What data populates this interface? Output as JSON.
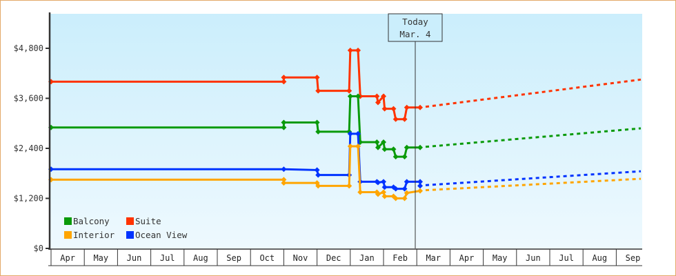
{
  "chart_data": {
    "type": "line",
    "title": "",
    "xlabel": "",
    "ylabel": "",
    "ylim": [
      0,
      5700
    ],
    "y_ticks": [
      "$0",
      "$1,200",
      "$2,400",
      "$3,600",
      "$4,800"
    ],
    "y_tick_values": [
      0,
      1200,
      2400,
      3600,
      4800
    ],
    "x_months": [
      "Apr",
      "May",
      "Jun",
      "Jul",
      "Aug",
      "Sep",
      "Oct",
      "Nov",
      "Dec",
      "Jan",
      "Feb",
      "Mar",
      "Apr",
      "May",
      "Jun",
      "Jul",
      "Aug",
      "Sep"
    ],
    "today_marker": {
      "line1": "Today",
      "line2": "Mar. 4"
    },
    "legend": [
      {
        "name": "Balcony",
        "color": "#0a9a0a"
      },
      {
        "name": "Suite",
        "color": "#ff3300"
      },
      {
        "name": "Interior",
        "color": "#ffa500"
      },
      {
        "name": "Ocean View",
        "color": "#0033ff"
      }
    ],
    "legend_position": "lower-left",
    "grid": false,
    "series": [
      {
        "name": "Suite",
        "color": "#ff3300",
        "history": [
          [
            "Apr 1",
            4000
          ],
          [
            "Nov 1",
            4000
          ],
          [
            "Nov 1",
            4100
          ],
          [
            "Dec 1",
            4100
          ],
          [
            "Dec 2",
            3780
          ],
          [
            "Dec 30",
            3780
          ],
          [
            "Jan 1",
            4750
          ],
          [
            "Jan 8",
            4750
          ],
          [
            "Jan 10",
            3650
          ],
          [
            "Jan 25",
            3650
          ],
          [
            "Jan 26",
            3500
          ],
          [
            "Feb 1",
            3650
          ],
          [
            "Feb 2",
            3350
          ],
          [
            "Feb 10",
            3350
          ],
          [
            "Feb 12",
            3100
          ],
          [
            "Feb 20",
            3100
          ],
          [
            "Feb 22",
            3380
          ],
          [
            "Mar 4",
            3380
          ]
        ],
        "forecast": [
          [
            "Mar 4",
            3380
          ],
          [
            "Sep 30",
            4050
          ]
        ]
      },
      {
        "name": "Balcony",
        "color": "#0a9a0a",
        "history": [
          [
            "Apr 1",
            2900
          ],
          [
            "Nov 1",
            2900
          ],
          [
            "Nov 1",
            3020
          ],
          [
            "Dec 1",
            3020
          ],
          [
            "Dec 2",
            2800
          ],
          [
            "Dec 30",
            2800
          ],
          [
            "Jan 1",
            3650
          ],
          [
            "Jan 8",
            3650
          ],
          [
            "Jan 10",
            2550
          ],
          [
            "Jan 25",
            2550
          ],
          [
            "Jan 26",
            2420
          ],
          [
            "Feb 1",
            2550
          ],
          [
            "Feb 2",
            2380
          ],
          [
            "Feb 10",
            2380
          ],
          [
            "Feb 12",
            2200
          ],
          [
            "Feb 20",
            2200
          ],
          [
            "Feb 22",
            2420
          ],
          [
            "Mar 4",
            2420
          ]
        ],
        "forecast": [
          [
            "Mar 4",
            2420
          ],
          [
            "Sep 30",
            2880
          ]
        ]
      },
      {
        "name": "Ocean View",
        "color": "#0033ff",
        "history": [
          [
            "Apr 1",
            1900
          ],
          [
            "Nov 1",
            1900
          ],
          [
            "Dec 1",
            1880
          ],
          [
            "Dec 2",
            1760
          ],
          [
            "Dec 30",
            1760
          ],
          [
            "Jan 1",
            2750
          ],
          [
            "Jan 8",
            2750
          ],
          [
            "Jan 10",
            1600
          ],
          [
            "Jan 25",
            1600
          ],
          [
            "Jan 26",
            1580
          ],
          [
            "Feb 1",
            1600
          ],
          [
            "Feb 2",
            1470
          ],
          [
            "Feb 10",
            1470
          ],
          [
            "Feb 12",
            1430
          ],
          [
            "Feb 20",
            1430
          ],
          [
            "Feb 22",
            1600
          ],
          [
            "Mar 4",
            1600
          ],
          [
            "Mar 4",
            1500
          ]
        ],
        "forecast": [
          [
            "Mar 4",
            1500
          ],
          [
            "Sep 30",
            1850
          ]
        ]
      },
      {
        "name": "Interior",
        "color": "#ffa500",
        "history": [
          [
            "Apr 1",
            1650
          ],
          [
            "Nov 1",
            1650
          ],
          [
            "Nov 1",
            1570
          ],
          [
            "Dec 1",
            1570
          ],
          [
            "Dec 2",
            1500
          ],
          [
            "Dec 30",
            1500
          ],
          [
            "Jan 1",
            2450
          ],
          [
            "Jan 8",
            2450
          ],
          [
            "Jan 10",
            1350
          ],
          [
            "Jan 25",
            1350
          ],
          [
            "Jan 26",
            1300
          ],
          [
            "Feb 1",
            1350
          ],
          [
            "Feb 2",
            1250
          ],
          [
            "Feb 10",
            1250
          ],
          [
            "Feb 12",
            1200
          ],
          [
            "Feb 20",
            1200
          ],
          [
            "Feb 22",
            1330
          ],
          [
            "Mar 4",
            1380
          ]
        ],
        "forecast": [
          [
            "Mar 4",
            1380
          ],
          [
            "Sep 30",
            1670
          ]
        ]
      }
    ]
  },
  "colors": {
    "frame_border": "#e3a868",
    "plot_bg_top": "#cbeefc",
    "plot_bg_bottom": "#eef9fe",
    "axis": "#333333"
  }
}
